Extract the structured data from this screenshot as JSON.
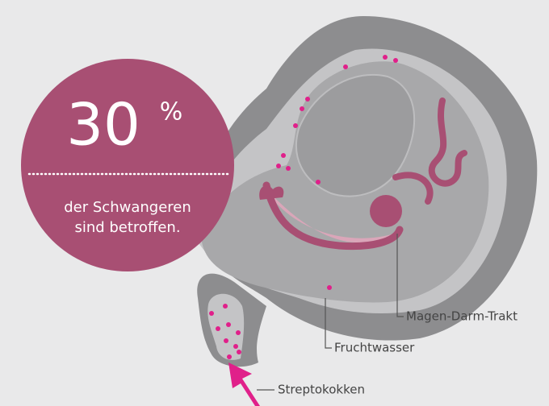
{
  "stat": {
    "value": "30",
    "unit": "%",
    "caption": [
      "der Schwangeren",
      "sind betroffen."
    ]
  },
  "labels": [
    "Magen-Darm-Trakt",
    "Fruchtwasser",
    "Streptokokken"
  ]
}
